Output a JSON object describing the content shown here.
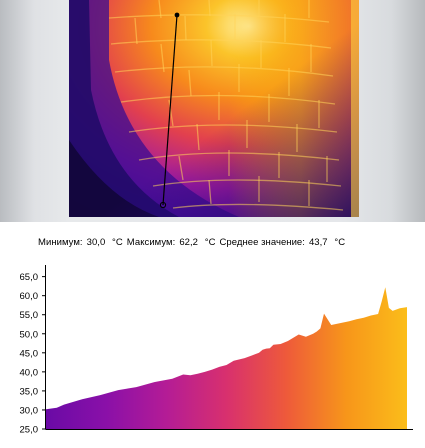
{
  "stats": {
    "min_label": "Минимум:",
    "min_value": "30,0",
    "max_label": "Максимум:",
    "max_value": "62,2",
    "avg_label": "Среднее значение:",
    "avg_value": "43,7",
    "unit": "°C"
  },
  "colors": {
    "palette": [
      "#1a0a5e",
      "#4a0aa0",
      "#8a10a8",
      "#c0208e",
      "#e8405a",
      "#f47a20",
      "#f7b000",
      "#fde34a",
      "#fffbd0"
    ]
  },
  "chart_data": {
    "type": "area",
    "title": "",
    "xlabel": "",
    "ylabel": "",
    "ylim": [
      25,
      67
    ],
    "yticks": [
      "65,0",
      "60,0",
      "55,0",
      "50,0",
      "45,0",
      "40,0",
      "35,0",
      "30,0",
      "25,0"
    ],
    "ytick_values": [
      65,
      60,
      55,
      50,
      45,
      40,
      35,
      30,
      25
    ],
    "x": [
      0,
      3,
      5,
      10,
      15,
      20,
      25,
      30,
      35,
      38,
      40,
      42,
      44,
      46,
      48,
      50,
      52,
      55,
      57,
      59,
      60,
      61,
      62,
      63,
      65,
      67,
      70,
      72,
      74,
      75,
      76,
      77,
      79,
      82,
      84,
      86,
      88,
      90,
      92,
      93,
      94,
      95,
      96,
      98,
      100
    ],
    "values": [
      30.2,
      30.6,
      31.4,
      32.8,
      33.9,
      35.2,
      36.0,
      37.3,
      38.2,
      39.3,
      39.1,
      39.5,
      40.0,
      40.6,
      41.3,
      41.8,
      42.9,
      43.6,
      44.3,
      45.0,
      45.8,
      46.1,
      46.2,
      47.1,
      47.3,
      48.1,
      49.8,
      49.2,
      50.0,
      50.6,
      51.4,
      55.3,
      52.3,
      52.9,
      53.3,
      53.8,
      54.2,
      54.8,
      55.2,
      58.5,
      62.2,
      56.8,
      56.0,
      56.7,
      57.0
    ],
    "fill_gradient": [
      "#6a0aa6",
      "#8a10a8",
      "#b41c96",
      "#d8306e",
      "#ee5a3a",
      "#f7961a",
      "#fbbd1a"
    ]
  }
}
